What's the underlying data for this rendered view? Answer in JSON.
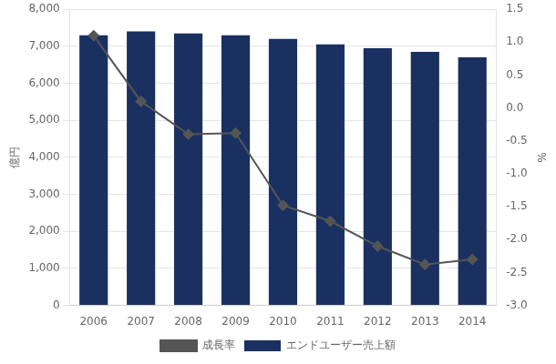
{
  "chart_data": {
    "type": "bar",
    "categories": [
      "2006",
      "2007",
      "2008",
      "2009",
      "2010",
      "2011",
      "2012",
      "2013",
      "2014"
    ],
    "series": [
      {
        "name": "エンドユーザー売上額",
        "type": "bar",
        "color": "#1a3060",
        "values": [
          7300,
          7400,
          7350,
          7300,
          7200,
          7050,
          6950,
          6850,
          6700
        ]
      },
      {
        "name": "成長率",
        "type": "line",
        "axis": "y2",
        "color": "#555555",
        "marker": "diamond",
        "values": [
          1.1,
          0.1,
          -0.4,
          -0.38,
          -1.48,
          -1.72,
          -2.1,
          -2.38,
          -2.3
        ]
      }
    ],
    "ylabel": "億円",
    "y2label": "%",
    "ylim": [
      0,
      8000
    ],
    "yticks": [
      0,
      {
        "value": 1000,
        "label": "1,000"
      },
      {
        "value": 2000,
        "label": "2,000"
      },
      {
        "value": 3000,
        "label": "3,000"
      },
      {
        "value": 4000,
        "label": "4,000"
      },
      {
        "value": 5000,
        "label": "5,000"
      },
      {
        "value": 6000,
        "label": "6,000"
      },
      {
        "value": 7000,
        "label": "7,000"
      },
      {
        "value": 8000,
        "label": "8,000"
      }
    ],
    "y2lim": [
      -3.0,
      1.5
    ],
    "y2ticks": [
      {
        "value": -3,
        "label": "-3.0"
      },
      -2.5,
      {
        "value": -2,
        "label": "-2.0"
      },
      -1.5,
      {
        "value": -1,
        "label": "-1.0"
      },
      -0.5,
      {
        "value": 0,
        "label": "0.0"
      },
      0.5,
      {
        "value": 1,
        "label": "1.0"
      },
      1.5
    ],
    "grid": true,
    "legend": "bottom"
  }
}
